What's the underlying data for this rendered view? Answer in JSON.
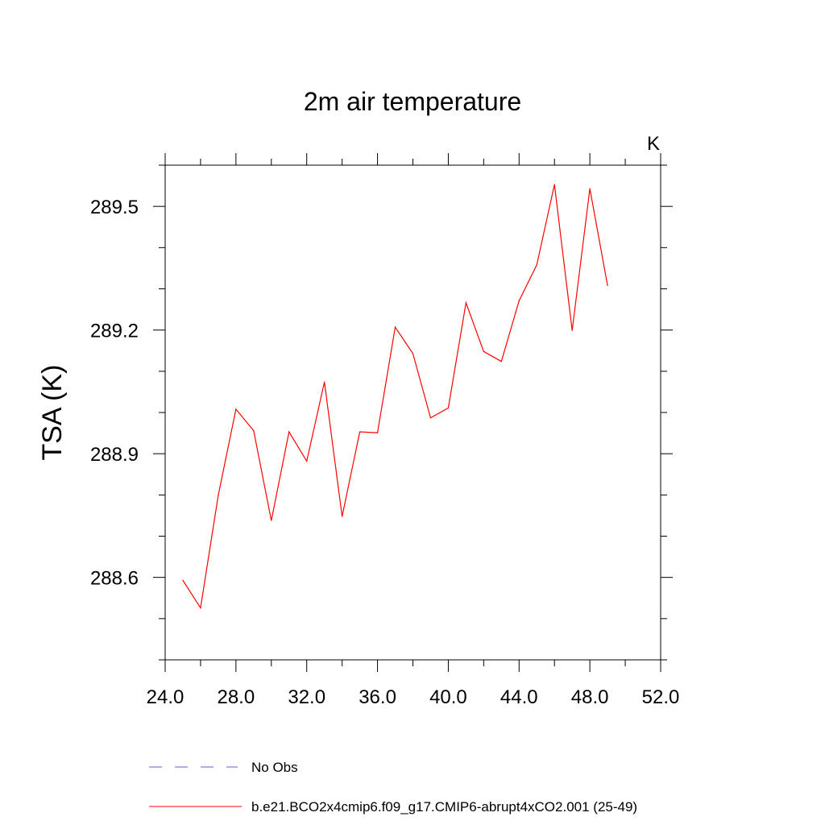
{
  "chart_data": {
    "type": "line",
    "title": "2m air temperature",
    "units_label": "K",
    "xlabel": "",
    "ylabel": "TSA  (K)",
    "xlim": [
      24.0,
      52.0
    ],
    "ylim": [
      288.4,
      289.6
    ],
    "x_ticks": [
      "24.0",
      "28.0",
      "32.0",
      "36.0",
      "40.0",
      "44.0",
      "48.0",
      "52.0"
    ],
    "y_ticks": [
      "288.6",
      "288.9",
      "289.2",
      "289.5"
    ],
    "x_tick_values": [
      24,
      28,
      32,
      36,
      40,
      44,
      48,
      52
    ],
    "y_tick_values": [
      288.6,
      288.9,
      289.2,
      289.5
    ],
    "x_minor_step": 2,
    "y_minor_step": 0.1,
    "grid": false,
    "legend_position": "bottom",
    "series": [
      {
        "name": "b.e21.BCO2x4cmip6.f09_g17.CMIP6-abrupt4xCO2.001 (25-49)",
        "color": "#ff0000",
        "style": "solid",
        "x": [
          25,
          26,
          27,
          28,
          29,
          30,
          31,
          32,
          33,
          34,
          35,
          36,
          37,
          38,
          39,
          40,
          41,
          42,
          43,
          44,
          45,
          46,
          47,
          48,
          49
        ],
        "values": [
          288.593,
          288.526,
          288.799,
          289.008,
          288.956,
          288.738,
          288.953,
          288.882,
          289.074,
          288.748,
          288.953,
          288.951,
          289.207,
          289.143,
          288.987,
          289.011,
          289.266,
          289.148,
          289.124,
          289.271,
          289.358,
          289.553,
          289.199,
          289.543,
          289.308
        ]
      },
      {
        "name": "No Obs",
        "color": "#6a5acd",
        "style": "dashed",
        "x": [],
        "values": []
      }
    ]
  }
}
